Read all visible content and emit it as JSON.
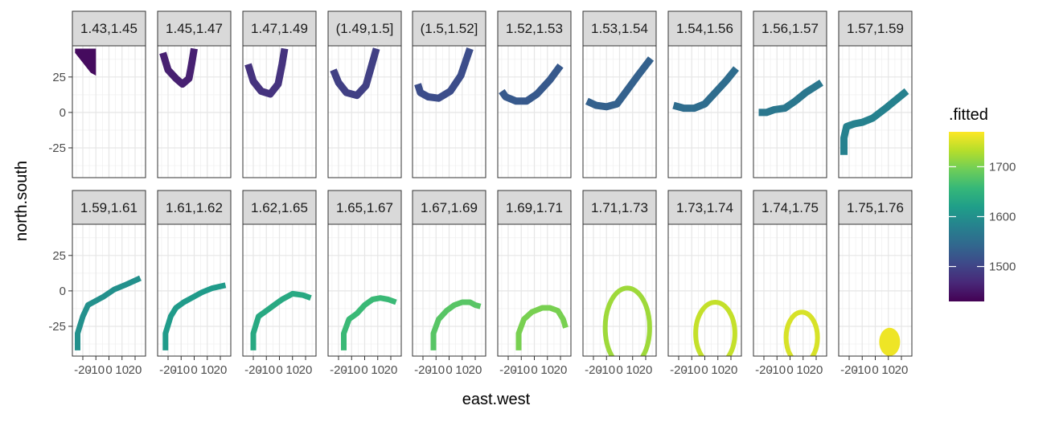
{
  "chart_data": {
    "type": "area",
    "x_label": "east.west",
    "y_label": "north.south",
    "x_ticks": [
      "-20",
      "-10",
      "0",
      "10",
      "20"
    ],
    "y_ticks": [
      25,
      0,
      -25
    ],
    "xlim": [
      -28,
      28
    ],
    "ylim": [
      -46,
      47
    ],
    "grid": true,
    "facet_layout": {
      "rows": 2,
      "cols": 10
    },
    "legend": {
      "title": ".fitted",
      "placement": "right",
      "type": "colorbar",
      "range": [
        1430,
        1770
      ],
      "ticks": [
        1500,
        1600,
        1700
      ],
      "colors": [
        "#440154",
        "#482878",
        "#3e4989",
        "#31688e",
        "#26828e",
        "#1f9e89",
        "#35b779",
        "#6ece58",
        "#b5de2b",
        "#fde725"
      ]
    },
    "panels": [
      {
        "label": "1.43,1.45",
        "fitted": 1440,
        "center": [
          -15,
          45
        ],
        "half_width": [
          0,
          0
        ],
        "shape": "blob",
        "points": [
          [
            -26,
            45
          ],
          [
            -10,
            45
          ],
          [
            -10,
            26
          ],
          [
            -14,
            28
          ],
          [
            -26,
            42
          ]
        ]
      },
      {
        "label": "1.45,1.47",
        "fitted": 1460,
        "center": [
          -8,
          20
        ],
        "half_width": [
          4,
          8
        ],
        "points": [
          [
            -24,
            42
          ],
          [
            -20,
            30
          ],
          [
            -14,
            24
          ],
          [
            -9,
            20
          ],
          [
            -4,
            24
          ],
          [
            -2,
            34
          ],
          [
            0,
            45
          ]
        ]
      },
      {
        "label": "1.47,1.49",
        "fitted": 1480,
        "center": [
          -5,
          12
        ],
        "half_width": [
          3,
          5
        ],
        "points": [
          [
            -24,
            34
          ],
          [
            -20,
            22
          ],
          [
            -14,
            15
          ],
          [
            -7,
            13
          ],
          [
            -1,
            20
          ],
          [
            2,
            34
          ],
          [
            4,
            45
          ]
        ]
      },
      {
        "label": "(1.49,1.5]",
        "fitted": 1495,
        "center": [
          -3,
          10
        ],
        "half_width": [
          3,
          5
        ],
        "points": [
          [
            -24,
            30
          ],
          [
            -20,
            21
          ],
          [
            -14,
            14
          ],
          [
            -6,
            12
          ],
          [
            1,
            19
          ],
          [
            5,
            32
          ],
          [
            9,
            45
          ]
        ]
      },
      {
        "label": "(1.5,1.52]",
        "fitted": 1510,
        "center": [
          -2,
          8
        ],
        "half_width": [
          3,
          5
        ],
        "points": [
          [
            -24,
            20
          ],
          [
            -22,
            14
          ],
          [
            -16,
            11
          ],
          [
            -8,
            10
          ],
          [
            1,
            15
          ],
          [
            9,
            26
          ],
          [
            16,
            45
          ]
        ]
      },
      {
        "label": "1.52,1.53",
        "fitted": 1525,
        "center": [
          -4,
          8
        ],
        "half_width": [
          2,
          5
        ],
        "points": [
          [
            -25,
            15
          ],
          [
            -22,
            11
          ],
          [
            -14,
            8
          ],
          [
            -6,
            8
          ],
          [
            2,
            13
          ],
          [
            12,
            23
          ],
          [
            20,
            33
          ]
        ]
      },
      {
        "label": "1.53,1.54",
        "fitted": 1535,
        "center": [
          -6,
          5
        ],
        "half_width": [
          2,
          8
        ],
        "points": [
          [
            -25,
            8
          ],
          [
            -18,
            5
          ],
          [
            -10,
            4
          ],
          [
            -2,
            6
          ],
          [
            6,
            16
          ],
          [
            14,
            26
          ],
          [
            24,
            38
          ]
        ]
      },
      {
        "label": "1.54,1.56",
        "fitted": 1550,
        "center": [
          -6,
          4
        ],
        "half_width": [
          2,
          6
        ],
        "points": [
          [
            -24,
            5
          ],
          [
            -16,
            3
          ],
          [
            -8,
            3
          ],
          [
            0,
            6
          ],
          [
            8,
            14
          ],
          [
            16,
            22
          ],
          [
            24,
            31
          ]
        ]
      },
      {
        "label": "1.56,1.57",
        "fitted": 1565,
        "center": [
          -10,
          0
        ],
        "half_width": [
          3,
          4
        ],
        "points": [
          [
            -24,
            0
          ],
          [
            -18,
            0
          ],
          [
            -12,
            2
          ],
          [
            -4,
            3
          ],
          [
            4,
            8
          ],
          [
            12,
            14
          ],
          [
            24,
            21
          ]
        ]
      },
      {
        "label": "1.57,1.59",
        "fitted": 1580,
        "center": [
          -20,
          -10
        ],
        "half_width": [
          4,
          2
        ],
        "points": [
          [
            -24,
            -30
          ],
          [
            -24,
            -18
          ],
          [
            -22,
            -10
          ],
          [
            -16,
            -8
          ],
          [
            -10,
            -7
          ],
          [
            -2,
            -4
          ],
          [
            8,
            3
          ],
          [
            16,
            9
          ],
          [
            24,
            15
          ]
        ]
      },
      {
        "label": "1.59,1.61",
        "fitted": 1600,
        "center": [
          -10,
          -5
        ],
        "half_width": [
          2,
          3
        ],
        "points": [
          [
            -24,
            -42
          ],
          [
            -24,
            -30
          ],
          [
            -20,
            -18
          ],
          [
            -16,
            -10
          ],
          [
            -10,
            -7
          ],
          [
            -4,
            -4
          ],
          [
            4,
            1
          ],
          [
            12,
            4
          ],
          [
            24,
            9
          ]
        ]
      },
      {
        "label": "1.61,1.62",
        "fitted": 1615,
        "center": [
          -8,
          -5
        ],
        "half_width": [
          2,
          3
        ],
        "points": [
          [
            -22,
            -42
          ],
          [
            -22,
            -30
          ],
          [
            -18,
            -18
          ],
          [
            -14,
            -12
          ],
          [
            -8,
            -8
          ],
          [
            -2,
            -5
          ],
          [
            6,
            -1
          ],
          [
            14,
            2
          ],
          [
            24,
            4
          ]
        ]
      },
      {
        "label": "1.62,1.65",
        "fitted": 1635,
        "center": [
          -4,
          -8
        ],
        "half_width": [
          2,
          3
        ],
        "points": [
          [
            -20,
            -42
          ],
          [
            -20,
            -30
          ],
          [
            -16,
            -18
          ],
          [
            -10,
            -14
          ],
          [
            -4,
            -10
          ],
          [
            2,
            -6
          ],
          [
            10,
            -2
          ],
          [
            18,
            -3
          ],
          [
            24,
            -5
          ]
        ]
      },
      {
        "label": "1.65,1.67",
        "fitted": 1660,
        "center": [
          0,
          -10
        ],
        "half_width": [
          2,
          3
        ],
        "points": [
          [
            -16,
            -42
          ],
          [
            -16,
            -30
          ],
          [
            -12,
            -20
          ],
          [
            -6,
            -16
          ],
          [
            0,
            -10
          ],
          [
            6,
            -6
          ],
          [
            12,
            -5
          ],
          [
            18,
            -6
          ],
          [
            24,
            -8
          ]
        ]
      },
      {
        "label": "1.67,1.69",
        "fitted": 1680,
        "center": [
          4,
          -10
        ],
        "half_width": [
          2,
          3
        ],
        "points": [
          [
            -12,
            -42
          ],
          [
            -12,
            -30
          ],
          [
            -8,
            -20
          ],
          [
            -2,
            -14
          ],
          [
            4,
            -10
          ],
          [
            10,
            -8
          ],
          [
            16,
            -8
          ],
          [
            20,
            -10
          ],
          [
            24,
            -11
          ]
        ]
      },
      {
        "label": "1.69,1.71",
        "fitted": 1700,
        "center": [
          6,
          -12
        ],
        "half_width": [
          2,
          3
        ],
        "points": [
          [
            -12,
            -42
          ],
          [
            -12,
            -30
          ],
          [
            -8,
            -20
          ],
          [
            -2,
            -15
          ],
          [
            6,
            -12
          ],
          [
            12,
            -12
          ],
          [
            18,
            -14
          ],
          [
            22,
            -20
          ],
          [
            24,
            -26
          ]
        ]
      },
      {
        "label": "1.71,1.73",
        "fitted": 1720,
        "center": [
          6,
          -26
        ],
        "shape": "ring",
        "rx": 17,
        "ry": 28,
        "ring_thickness": 3,
        "open_bottom": true
      },
      {
        "label": "1.73,1.74",
        "fitted": 1740,
        "center": [
          8,
          -30
        ],
        "shape": "ring",
        "rx": 15,
        "ry": 22,
        "ring_thickness": 3
      },
      {
        "label": "1.74,1.75",
        "fitted": 1750,
        "center": [
          9,
          -33
        ],
        "shape": "ring",
        "rx": 12,
        "ry": 18,
        "ring_thickness": 3
      },
      {
        "label": "1.75,1.76",
        "fitted": 1762,
        "center": [
          11,
          -36
        ],
        "shape": "disc",
        "rx": 8,
        "ry": 10
      }
    ]
  }
}
